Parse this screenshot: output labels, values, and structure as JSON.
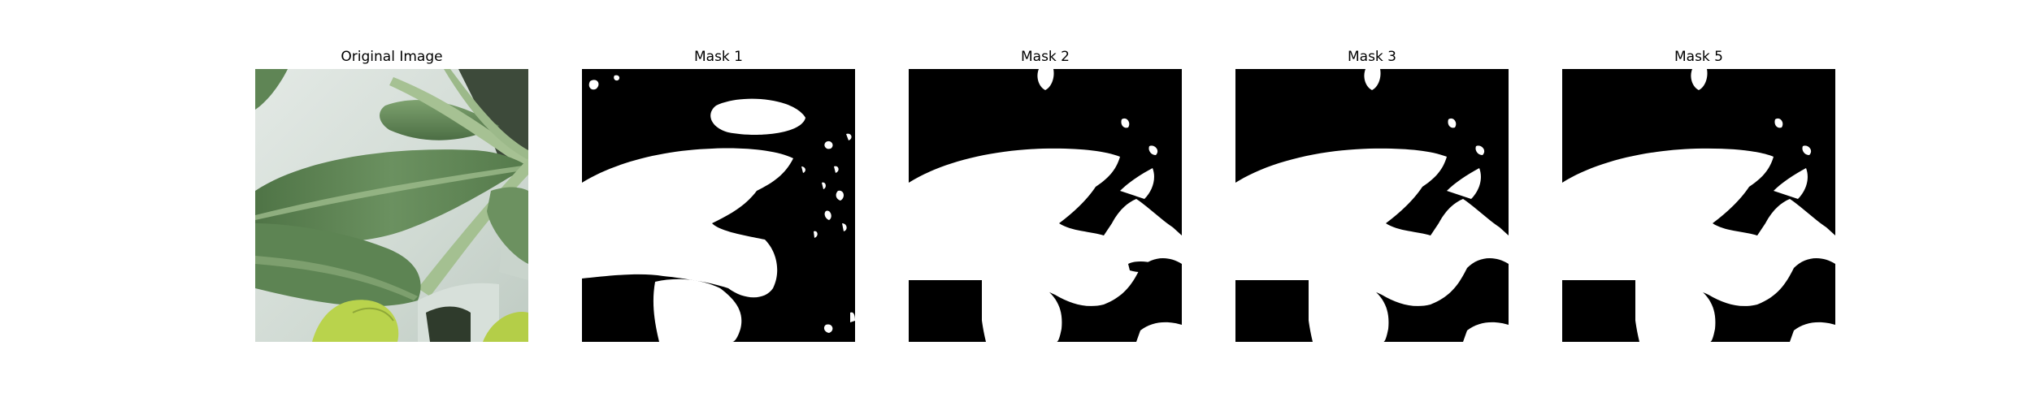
{
  "figure": {
    "panels": [
      {
        "title": "Original Image",
        "kind": "photo"
      },
      {
        "title": "Mask 1",
        "kind": "mask",
        "variant": "noisy"
      },
      {
        "title": "Mask 2",
        "kind": "mask",
        "variant": "clean"
      },
      {
        "title": "Mask 3",
        "kind": "mask",
        "variant": "clean"
      },
      {
        "title": "Mask 5",
        "kind": "mask",
        "variant": "clean"
      }
    ],
    "colors": {
      "mask_background": "#000000",
      "mask_foreground": "#ffffff",
      "photo_background": "#d3ddd6",
      "leaf_dark": "#5a7d4f",
      "leaf_mid": "#6f9562",
      "leaf_light": "#9bb88a",
      "stem": "#a9c397",
      "bright_leaf": "#b7d14a",
      "shadow": "#2f3b2c"
    }
  }
}
